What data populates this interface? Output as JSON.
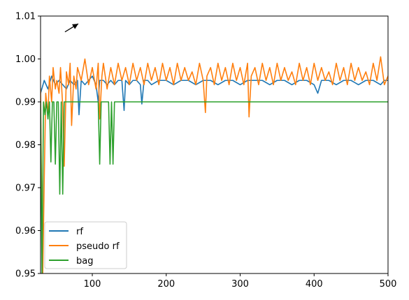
{
  "chart_data": {
    "type": "line",
    "title": "",
    "xlabel": "",
    "ylabel": "",
    "xlim": [
      30,
      500
    ],
    "ylim": [
      0.95,
      1.01
    ],
    "xticks": [
      100,
      200,
      300,
      400,
      500
    ],
    "yticks": [
      0.95,
      0.96,
      0.97,
      0.98,
      0.99,
      1.0,
      1.01
    ],
    "xtick_labels": [
      "100",
      "200",
      "300",
      "400",
      "500"
    ],
    "ytick_labels": [
      "0.95",
      "0.96",
      "0.97",
      "0.98",
      "0.99",
      "1.00",
      "1.01"
    ],
    "grid": false,
    "legend_position": "lower-left",
    "annotations": [
      {
        "type": "arrow",
        "name": "cursor-arrow-icon",
        "from": [
          63,
          1.0063
        ],
        "to": [
          81,
          1.0082
        ]
      }
    ],
    "series": [
      {
        "name": "rf",
        "color": "#1f77b4",
        "x": [
          30,
          35,
          40,
          45,
          50,
          55,
          60,
          65,
          70,
          75,
          80,
          82,
          85,
          90,
          95,
          100,
          105,
          108,
          110,
          115,
          120,
          125,
          130,
          135,
          140,
          143,
          145,
          150,
          155,
          160,
          165,
          167,
          170,
          175,
          180,
          190,
          200,
          210,
          220,
          230,
          240,
          250,
          260,
          270,
          280,
          290,
          300,
          310,
          320,
          330,
          340,
          350,
          360,
          370,
          380,
          390,
          400,
          405,
          410,
          420,
          430,
          440,
          450,
          460,
          470,
          480,
          490,
          495,
          500
        ],
        "y": [
          0.992,
          0.995,
          0.993,
          0.996,
          0.994,
          0.995,
          0.994,
          0.993,
          0.995,
          0.994,
          0.995,
          0.987,
          0.995,
          0.994,
          0.995,
          0.996,
          0.994,
          0.99,
          0.995,
          0.995,
          0.994,
          0.995,
          0.994,
          0.995,
          0.995,
          0.988,
          0.995,
          0.994,
          0.995,
          0.995,
          0.994,
          0.9895,
          0.995,
          0.995,
          0.994,
          0.995,
          0.995,
          0.994,
          0.995,
          0.995,
          0.994,
          0.995,
          0.995,
          0.994,
          0.995,
          0.995,
          0.994,
          0.995,
          0.995,
          0.995,
          0.994,
          0.995,
          0.995,
          0.994,
          0.995,
          0.995,
          0.994,
          0.992,
          0.995,
          0.995,
          0.994,
          0.995,
          0.995,
          0.994,
          0.995,
          0.995,
          0.994,
          0.995,
          0.995
        ]
      },
      {
        "name": "pseudo rf",
        "color": "#ff7f0e",
        "x": [
          30,
          32,
          33,
          35,
          37,
          40,
          42,
          45,
          47,
          50,
          52,
          55,
          57,
          60,
          62,
          65,
          68,
          70,
          72,
          75,
          78,
          80,
          85,
          90,
          95,
          100,
          105,
          108,
          110,
          113,
          115,
          120,
          125,
          130,
          135,
          140,
          145,
          150,
          155,
          160,
          165,
          170,
          175,
          180,
          185,
          190,
          195,
          200,
          205,
          210,
          215,
          220,
          225,
          230,
          235,
          240,
          245,
          250,
          253,
          255,
          260,
          265,
          270,
          275,
          280,
          285,
          290,
          295,
          300,
          305,
          310,
          312,
          315,
          320,
          325,
          330,
          335,
          340,
          345,
          350,
          355,
          360,
          365,
          370,
          375,
          380,
          385,
          390,
          395,
          400,
          405,
          410,
          415,
          420,
          425,
          430,
          435,
          440,
          445,
          450,
          455,
          460,
          465,
          470,
          475,
          480,
          485,
          490,
          495,
          500
        ],
        "y": [
          0.993,
          0.958,
          0.95,
          0.972,
          0.992,
          0.987,
          0.996,
          0.99,
          0.998,
          0.993,
          0.995,
          0.992,
          0.998,
          0.989,
          0.975,
          0.997,
          0.994,
          0.999,
          0.9845,
          0.996,
          0.993,
          0.998,
          0.995,
          1.0,
          0.994,
          0.998,
          0.993,
          0.999,
          0.986,
          0.996,
          0.999,
          0.993,
          0.998,
          0.994,
          0.999,
          0.995,
          0.998,
          0.994,
          0.999,
          0.995,
          0.998,
          0.994,
          0.999,
          0.995,
          0.998,
          0.994,
          0.999,
          0.995,
          0.998,
          0.994,
          0.999,
          0.995,
          0.998,
          0.995,
          0.997,
          0.994,
          0.999,
          0.995,
          0.9875,
          0.996,
          0.998,
          0.994,
          0.999,
          0.995,
          0.998,
          0.994,
          0.999,
          0.995,
          0.998,
          0.994,
          0.999,
          0.9865,
          0.996,
          0.998,
          0.994,
          0.999,
          0.995,
          0.998,
          0.994,
          0.999,
          0.995,
          0.998,
          0.995,
          0.997,
          0.994,
          0.999,
          0.995,
          0.998,
          0.994,
          0.999,
          0.995,
          0.998,
          0.995,
          0.997,
          0.994,
          0.999,
          0.995,
          0.998,
          0.994,
          0.999,
          0.995,
          0.998,
          0.995,
          0.997,
          0.994,
          0.999,
          0.995,
          1.0005,
          0.994,
          0.996
        ]
      },
      {
        "name": "bag",
        "color": "#2ca02c",
        "x": [
          30,
          32,
          34,
          36,
          38,
          40,
          42,
          44,
          46,
          48,
          50,
          52,
          54,
          56,
          58,
          60,
          62,
          64,
          66,
          68,
          70,
          72,
          80,
          90,
          100,
          105,
          108,
          110,
          112,
          115,
          118,
          120,
          122,
          124,
          126,
          128,
          130,
          140,
          150,
          200,
          300,
          400,
          500
        ],
        "y": [
          0.99,
          0.95,
          0.99,
          0.987,
          0.99,
          0.986,
          0.99,
          0.976,
          0.99,
          0.99,
          0.9755,
          0.99,
          0.99,
          0.9685,
          0.99,
          0.9685,
          0.99,
          0.99,
          0.99,
          0.99,
          0.99,
          0.99,
          0.99,
          0.99,
          0.99,
          0.99,
          0.99,
          0.9755,
          0.99,
          0.99,
          0.99,
          0.99,
          0.99,
          0.9755,
          0.99,
          0.9755,
          0.99,
          0.99,
          0.99,
          0.99,
          0.99,
          0.99,
          0.99
        ]
      }
    ]
  }
}
